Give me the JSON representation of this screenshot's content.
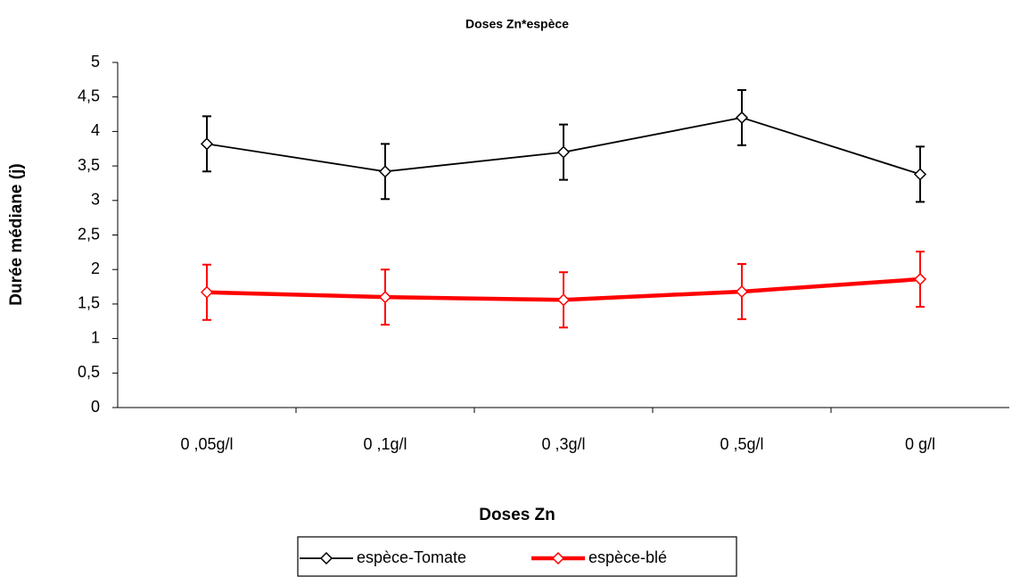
{
  "chart_data": {
    "type": "line",
    "title": "Doses Zn*espèce",
    "x_label": "Doses Zn",
    "y_label": "Durée médiane (j)",
    "categories": [
      "0 ,05g/l",
      "0 ,1g/l",
      "0 ,3g/l",
      "0 ,5g/l",
      "0 g/l"
    ],
    "series": [
      {
        "name": "espèce-Tomate",
        "color": "#000000",
        "values": [
          3.82,
          3.42,
          3.7,
          4.2,
          3.38
        ],
        "errors": [
          0.4,
          0.4,
          0.4,
          0.4,
          0.4
        ]
      },
      {
        "name": "espèce-blé",
        "color": "#ff0000",
        "values": [
          1.67,
          1.6,
          1.56,
          1.68,
          1.86
        ],
        "errors": [
          0.4,
          0.4,
          0.4,
          0.4,
          0.4
        ]
      }
    ],
    "ylim": [
      0,
      5
    ],
    "yticks": [
      0,
      {
        "value": 0.5,
        "label": "0,5"
      },
      1,
      {
        "value": 1.5,
        "label": "1,5"
      },
      2,
      {
        "value": 2.5,
        "label": "2,5"
      },
      3,
      {
        "value": 3.5,
        "label": "3,5"
      },
      4,
      {
        "value": 4.5,
        "label": "4,5"
      },
      5
    ],
    "legend": "bottom"
  }
}
